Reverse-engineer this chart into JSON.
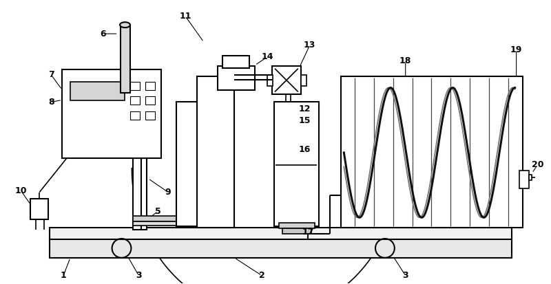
{
  "bg_color": "#ffffff",
  "lc": "#000000",
  "fig_width": 8.0,
  "fig_height": 4.13,
  "dpi": 100,
  "coil_color1": "#111111",
  "coil_color2": "#777777",
  "fill_light": "#f5f5f5",
  "fill_mid": "#e0e0e0",
  "fill_dark": "#cccccc"
}
